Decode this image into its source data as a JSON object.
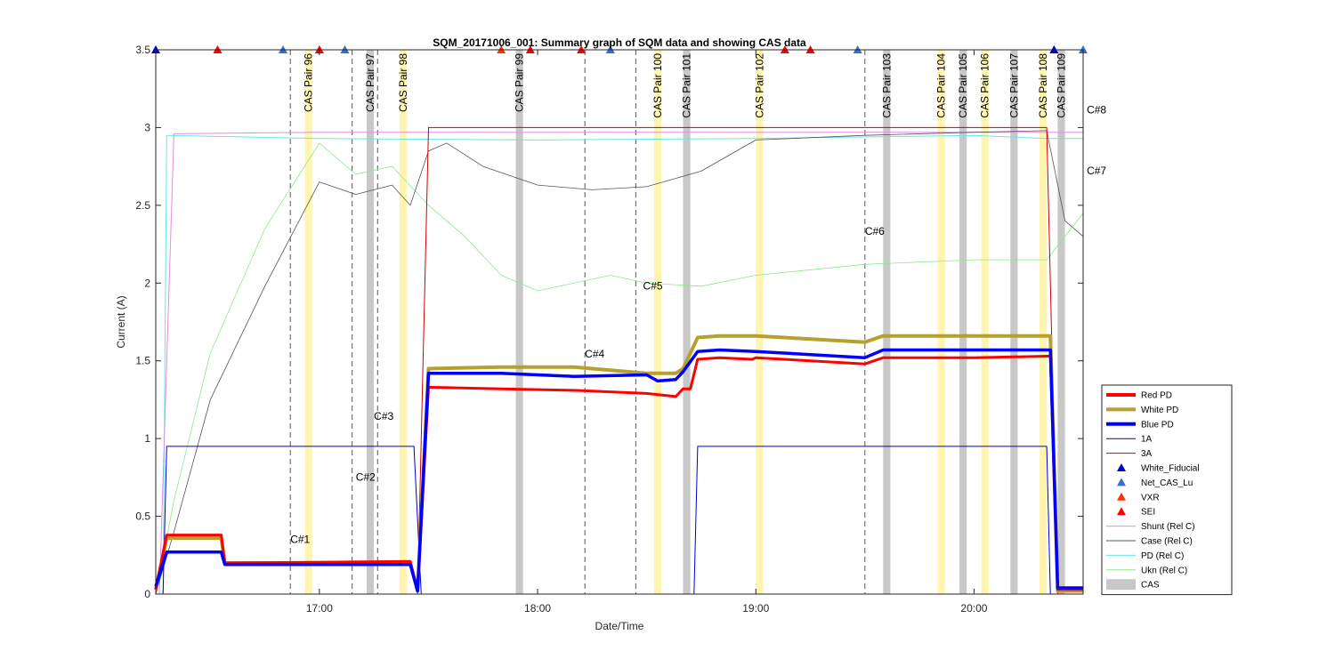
{
  "chart_data": {
    "type": "line",
    "title": "SQM_20171006_001: Summary graph of SQM data and showing CAS data",
    "xlabel": "Date/Time",
    "ylabel": "Current (A)",
    "xlim": [
      "16:15",
      "20:30"
    ],
    "ylim": [
      0,
      3.5
    ],
    "x_ticks": [
      "17:00",
      "18:00",
      "19:00",
      "20:00"
    ],
    "y_ticks": [
      "0",
      "0.5",
      "1",
      "1.5",
      "2",
      "2.5",
      "3",
      "3.5"
    ],
    "legend_position": "bottom-right",
    "legend": [
      "Red PD",
      "White PD",
      "Blue PD",
      "1A",
      "3A",
      "White_Fiducial",
      "Net_CAS_Lu",
      "VXR",
      "SEI",
      "Shunt (Rel C)",
      "Case (Rel C)",
      "PD (Rel C)",
      "Ukn (Rel C)",
      "CAS"
    ],
    "colors": {
      "red_pd": "#ff0000",
      "white_pd": "#b5a030",
      "blue_pd": "#0000ff",
      "one_a": "#0000cd",
      "three_a": "#cc0000",
      "white_fiducial": "#0000cd",
      "net_cas_lu": "#2f6fd6",
      "vxr": "#ff3300",
      "sei": "#ff0000",
      "shunt": "#e48de4",
      "case": "#555555",
      "pd": "#66e6e6",
      "ukn": "#8ee88e",
      "cas_gray": "#c8c8c8",
      "cas_yellow": "#fff5b0"
    },
    "series": [
      {
        "key": "red_pd",
        "name": "Red PD",
        "x": [
          "16:15",
          "16:18",
          "16:33",
          "16:34",
          "17:25",
          "17:27",
          "17:30",
          "17:50",
          "18:10",
          "18:30",
          "18:38",
          "18:40",
          "18:42",
          "18:44",
          "18:50",
          "18:59",
          "19:00",
          "19:30",
          "19:35",
          "19:40",
          "20:00",
          "20:20",
          "20:21",
          "20:23",
          "20:30"
        ],
        "y": [
          0.03,
          0.38,
          0.38,
          0.2,
          0.21,
          0.02,
          1.33,
          1.32,
          1.31,
          1.29,
          1.27,
          1.32,
          1.32,
          1.51,
          1.52,
          1.51,
          1.52,
          1.48,
          1.52,
          1.52,
          1.52,
          1.53,
          1.53,
          0.03,
          0.03
        ]
      },
      {
        "key": "white_pd",
        "name": "White PD",
        "x": [
          "16:15",
          "16:18",
          "16:33",
          "16:34",
          "17:25",
          "17:27",
          "17:30",
          "17:50",
          "18:10",
          "18:30",
          "18:38",
          "18:40",
          "18:44",
          "18:50",
          "19:00",
          "19:30",
          "19:35",
          "19:40",
          "20:00",
          "20:20",
          "20:21",
          "20:23",
          "20:30"
        ],
        "y": [
          0.03,
          0.36,
          0.36,
          0.2,
          0.2,
          0.02,
          1.45,
          1.46,
          1.46,
          1.42,
          1.42,
          1.45,
          1.65,
          1.66,
          1.66,
          1.62,
          1.66,
          1.66,
          1.66,
          1.66,
          1.66,
          0.02,
          0.02
        ]
      },
      {
        "key": "blue_pd",
        "name": "Blue PD",
        "x": [
          "16:15",
          "16:18",
          "16:33",
          "16:34",
          "17:25",
          "17:27",
          "17:30",
          "17:50",
          "18:10",
          "18:30",
          "18:33",
          "18:38",
          "18:40",
          "18:44",
          "18:50",
          "19:00",
          "19:30",
          "19:35",
          "19:40",
          "20:00",
          "20:20",
          "20:21",
          "20:23",
          "20:30"
        ],
        "y": [
          0.05,
          0.27,
          0.27,
          0.19,
          0.19,
          0.02,
          1.42,
          1.42,
          1.4,
          1.41,
          1.37,
          1.38,
          1.43,
          1.56,
          1.57,
          1.56,
          1.52,
          1.57,
          1.57,
          1.57,
          1.57,
          1.57,
          0.04,
          0.04
        ]
      },
      {
        "key": "one_a",
        "name": "1A",
        "x": [
          "16:15",
          "16:17",
          "16:18",
          "17:26",
          "17:28",
          "18:43",
          "18:44",
          "20:20",
          "20:21",
          "20:30"
        ],
        "y": [
          0.0,
          0.0,
          0.95,
          0.95,
          0.0,
          0.0,
          0.95,
          0.95,
          0.0,
          0.0
        ]
      },
      {
        "key": "three_a",
        "name": "3A",
        "x": [
          "16:15",
          "17:27",
          "17:30",
          "20:20",
          "20:23",
          "20:30"
        ],
        "y": [
          0.0,
          0.0,
          3.0,
          3.0,
          0.0,
          0.0
        ]
      },
      {
        "key": "shunt",
        "name": "Shunt (Rel C)",
        "x": [
          "16:15",
          "16:16",
          "16:20",
          "17:00",
          "18:00",
          "19:00",
          "20:00",
          "20:30"
        ],
        "y": [
          0.0,
          0.0,
          2.96,
          2.97,
          2.97,
          2.97,
          2.97,
          2.97
        ]
      },
      {
        "key": "case",
        "name": "Case (Rel C)",
        "x": [
          "16:15",
          "16:20",
          "16:30",
          "16:45",
          "17:00",
          "17:10",
          "17:20",
          "17:25",
          "17:30",
          "17:35",
          "17:45",
          "18:00",
          "18:15",
          "18:30",
          "18:45",
          "19:00",
          "19:30",
          "20:00",
          "20:20",
          "20:25",
          "20:30"
        ],
        "y": [
          0.0,
          0.4,
          1.25,
          1.98,
          2.65,
          2.57,
          2.63,
          2.5,
          2.85,
          2.9,
          2.75,
          2.63,
          2.6,
          2.62,
          2.72,
          2.92,
          2.95,
          2.97,
          2.98,
          2.4,
          2.3
        ]
      },
      {
        "key": "pd",
        "name": "PD (Rel C)",
        "x": [
          "16:15",
          "16:17",
          "16:18",
          "17:00",
          "18:00",
          "19:00",
          "20:00",
          "20:20",
          "20:30"
        ],
        "y": [
          0.0,
          0.0,
          2.95,
          2.93,
          2.92,
          2.93,
          2.95,
          2.93,
          2.93
        ]
      },
      {
        "key": "ukn",
        "name": "Ukn (Rel C)",
        "x": [
          "16:15",
          "16:20",
          "16:30",
          "16:45",
          "17:00",
          "17:10",
          "17:20",
          "17:30",
          "17:40",
          "17:50",
          "18:00",
          "18:20",
          "18:30",
          "18:45",
          "19:00",
          "19:30",
          "20:00",
          "20:20",
          "20:30"
        ],
        "y": [
          0.0,
          0.6,
          1.55,
          2.35,
          2.9,
          2.7,
          2.75,
          2.5,
          2.3,
          2.05,
          1.95,
          2.05,
          2.0,
          1.98,
          2.05,
          2.12,
          2.15,
          2.15,
          2.45
        ]
      }
    ],
    "markers": [
      {
        "name": "White_Fiducial",
        "x": [
          "16:15",
          "20:22"
        ],
        "y": [
          3.5,
          3.5
        ]
      },
      {
        "name": "Net_CAS_Lu",
        "x": [
          "16:50",
          "17:07",
          "18:20",
          "19:28",
          "20:30"
        ],
        "y": [
          3.5,
          3.5,
          3.5,
          3.5,
          3.5
        ]
      },
      {
        "name": "VXR",
        "x": [
          "16:32",
          "17:00",
          "17:50"
        ],
        "y": [
          3.5,
          3.5,
          3.5
        ]
      },
      {
        "name": "SEI",
        "x": [
          "16:32",
          "17:00",
          "17:58",
          "18:12",
          "19:08",
          "19:15"
        ],
        "y": [
          3.5,
          3.5,
          3.5,
          3.5,
          3.5,
          3.5
        ]
      }
    ],
    "cas_pairs": [
      {
        "label": "CAS Pair 96",
        "start": "16:56",
        "end": "16:58",
        "color": "yellow"
      },
      {
        "label": "CAS Pair 97",
        "start": "17:13",
        "end": "17:15",
        "color": "gray"
      },
      {
        "label": "CAS Pair 98",
        "start": "17:22",
        "end": "17:24",
        "color": "yellow"
      },
      {
        "label": "CAS Pair 99",
        "start": "17:54",
        "end": "17:56",
        "color": "gray"
      },
      {
        "label": "CAS Pair 100",
        "start": "18:32",
        "end": "18:34",
        "color": "yellow"
      },
      {
        "label": "CAS Pair 101",
        "start": "18:40",
        "end": "18:42",
        "color": "gray"
      },
      {
        "label": "CAS Pair 102",
        "start": "19:00",
        "end": "19:02",
        "color": "yellow"
      },
      {
        "label": "CAS Pair 103",
        "start": "19:35",
        "end": "19:37",
        "color": "gray"
      },
      {
        "label": "CAS Pair 104",
        "start": "19:50",
        "end": "19:52",
        "color": "yellow"
      },
      {
        "label": "CAS Pair 105",
        "start": "19:56",
        "end": "19:58",
        "color": "gray"
      },
      {
        "label": "CAS Pair 106",
        "start": "20:02",
        "end": "20:04",
        "color": "yellow"
      },
      {
        "label": "CAS Pair 107",
        "start": "20:10",
        "end": "20:12",
        "color": "gray"
      },
      {
        "label": "CAS Pair 108",
        "start": "20:18",
        "end": "20:20",
        "color": "yellow"
      },
      {
        "label": "CAS Pair 109",
        "start": "20:23",
        "end": "20:25",
        "color": "gray"
      }
    ],
    "dashed_lines": [
      "16:52",
      "17:09",
      "17:16",
      "18:13",
      "18:27",
      "19:30"
    ],
    "annotations": [
      {
        "text": "C#1",
        "x": "16:52",
        "y": 0.33
      },
      {
        "text": "C#2",
        "x": "17:10",
        "y": 0.73
      },
      {
        "text": "C#3",
        "x": "17:15",
        "y": 1.12
      },
      {
        "text": "C#4",
        "x": "18:13",
        "y": 1.52
      },
      {
        "text": "C#5",
        "x": "18:29",
        "y": 1.96
      },
      {
        "text": "C#6",
        "x": "19:30",
        "y": 2.31
      },
      {
        "text": "C#7",
        "x": "20:31",
        "y": 2.7
      },
      {
        "text": "C#8",
        "x": "20:31",
        "y": 3.09
      }
    ]
  }
}
